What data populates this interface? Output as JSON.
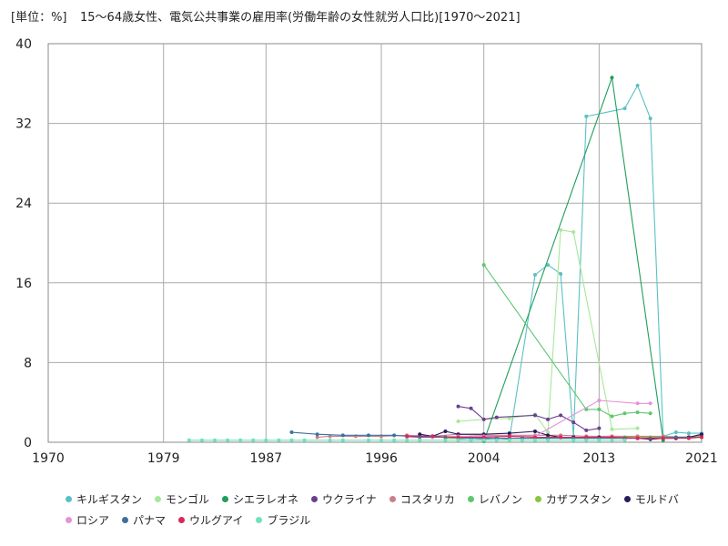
{
  "unit_label": "[単位：%]",
  "chart_data": {
    "type": "line",
    "title": "15〜64歳女性、電気公共事業の雇用率(労働年齢の女性就労人口比)[1970〜2021]",
    "xlim": [
      1970,
      2021
    ],
    "ylim": [
      0,
      40
    ],
    "x_ticks": [
      "1970",
      "1979",
      "1987",
      "1996",
      "2004",
      "2013",
      "2021"
    ],
    "y_ticks": [
      "0",
      "8",
      "16",
      "24",
      "32",
      "40"
    ],
    "grid": true,
    "legend_position": "bottom",
    "series": [
      {
        "name": "キルギスタン",
        "color": "#5bc0c4",
        "points": [
          [
            2002,
            0.3
          ],
          [
            2003,
            0.2
          ],
          [
            2004,
            0.3
          ],
          [
            2005,
            0.4
          ],
          [
            2006,
            0.3
          ],
          [
            2008,
            16.8
          ],
          [
            2009,
            17.8
          ],
          [
            2010,
            16.9
          ],
          [
            2011,
            0.6
          ],
          [
            2012,
            32.7
          ],
          [
            2015,
            33.5
          ],
          [
            2016,
            35.8
          ],
          [
            2017,
            32.5
          ],
          [
            2018,
            0.6
          ],
          [
            2019,
            1.0
          ],
          [
            2020,
            0.9
          ],
          [
            2021,
            0.9
          ]
        ]
      },
      {
        "name": "モンゴル",
        "color": "#a7e89a",
        "points": [
          [
            2002,
            2.1
          ],
          [
            2004,
            2.3
          ],
          [
            2006,
            2.4
          ],
          [
            2008,
            2.8
          ],
          [
            2009,
            1.0
          ],
          [
            2010,
            21.3
          ],
          [
            2011,
            21.1
          ],
          [
            2014,
            1.3
          ],
          [
            2016,
            1.4
          ]
        ]
      },
      {
        "name": "シエラレオネ",
        "color": "#1f9e5b",
        "points": [
          [
            2004,
            0.1
          ],
          [
            2014,
            36.6
          ],
          [
            2018,
            0.2
          ]
        ]
      },
      {
        "name": "ウクライナ",
        "color": "#6b3f8f",
        "points": [
          [
            2002,
            3.6
          ],
          [
            2003,
            3.4
          ],
          [
            2004,
            2.3
          ],
          [
            2005,
            2.5
          ],
          [
            2008,
            2.7
          ],
          [
            2009,
            2.3
          ],
          [
            2010,
            2.7
          ],
          [
            2011,
            2.0
          ],
          [
            2012,
            1.2
          ],
          [
            2013,
            1.4
          ]
        ]
      },
      {
        "name": "コスタリカ",
        "color": "#c97f8a",
        "points": [
          [
            1991,
            0.5
          ],
          [
            1992,
            0.6
          ],
          [
            1994,
            0.6
          ],
          [
            1996,
            0.6
          ],
          [
            1998,
            0.7
          ],
          [
            2000,
            0.6
          ],
          [
            2002,
            0.8
          ],
          [
            2004,
            0.7
          ],
          [
            2006,
            0.7
          ],
          [
            2008,
            0.7
          ],
          [
            2010,
            0.7
          ],
          [
            2012,
            0.6
          ],
          [
            2014,
            0.6
          ],
          [
            2016,
            0.6
          ],
          [
            2018,
            0.6
          ],
          [
            2020,
            0.5
          ],
          [
            2021,
            0.7
          ]
        ]
      },
      {
        "name": "レバノン",
        "color": "#5ec76e",
        "points": [
          [
            2004,
            17.8
          ],
          [
            2012,
            3.3
          ],
          [
            2013,
            3.3
          ],
          [
            2014,
            2.6
          ],
          [
            2015,
            2.9
          ],
          [
            2016,
            3.0
          ],
          [
            2017,
            2.9
          ]
        ]
      },
      {
        "name": "カザフスタン",
        "color": "#88c43f",
        "points": [
          [
            2001,
            0.4
          ],
          [
            2003,
            0.4
          ],
          [
            2005,
            0.4
          ],
          [
            2007,
            0.4
          ],
          [
            2009,
            0.4
          ],
          [
            2011,
            0.5
          ],
          [
            2013,
            0.5
          ],
          [
            2015,
            0.5
          ],
          [
            2017,
            0.5
          ],
          [
            2019,
            0.5
          ],
          [
            2021,
            0.6
          ]
        ]
      },
      {
        "name": "モルドバ",
        "color": "#2a1a5e",
        "points": [
          [
            1999,
            0.8
          ],
          [
            2000,
            0.6
          ],
          [
            2001,
            1.1
          ],
          [
            2002,
            0.8
          ],
          [
            2004,
            0.8
          ],
          [
            2006,
            0.9
          ],
          [
            2008,
            1.1
          ],
          [
            2009,
            0.7
          ],
          [
            2010,
            0.5
          ],
          [
            2011,
            0.5
          ],
          [
            2012,
            0.4
          ],
          [
            2013,
            0.5
          ],
          [
            2015,
            0.4
          ],
          [
            2016,
            0.4
          ],
          [
            2017,
            0.3
          ],
          [
            2018,
            0.4
          ],
          [
            2019,
            0.4
          ],
          [
            2020,
            0.5
          ],
          [
            2021,
            0.8
          ]
        ]
      },
      {
        "name": "ロシア",
        "color": "#e493d8",
        "points": [
          [
            1998,
            0.5
          ],
          [
            2000,
            0.5
          ],
          [
            2002,
            0.6
          ],
          [
            2004,
            0.6
          ],
          [
            2006,
            0.6
          ],
          [
            2008,
            0.6
          ],
          [
            2013,
            4.2
          ],
          [
            2016,
            3.9
          ],
          [
            2017,
            3.9
          ]
        ]
      },
      {
        "name": "パナマ",
        "color": "#3f6f9f",
        "points": [
          [
            1989,
            1.0
          ],
          [
            1991,
            0.8
          ],
          [
            1993,
            0.7
          ],
          [
            1995,
            0.7
          ],
          [
            1997,
            0.7
          ],
          [
            1999,
            0.5
          ],
          [
            2001,
            0.5
          ],
          [
            2003,
            0.4
          ],
          [
            2005,
            0.4
          ],
          [
            2007,
            0.4
          ],
          [
            2009,
            0.4
          ],
          [
            2011,
            0.4
          ],
          [
            2013,
            0.4
          ],
          [
            2015,
            0.4
          ],
          [
            2017,
            0.4
          ],
          [
            2019,
            0.5
          ],
          [
            2021,
            0.5
          ]
        ]
      },
      {
        "name": "ウルグアイ",
        "color": "#d9285a",
        "points": [
          [
            1998,
            0.6
          ],
          [
            2000,
            0.6
          ],
          [
            2002,
            0.5
          ],
          [
            2004,
            0.5
          ],
          [
            2006,
            0.6
          ],
          [
            2008,
            0.5
          ],
          [
            2010,
            0.5
          ],
          [
            2012,
            0.5
          ],
          [
            2014,
            0.5
          ],
          [
            2016,
            0.4
          ],
          [
            2018,
            0.4
          ],
          [
            2020,
            0.4
          ],
          [
            2021,
            0.5
          ]
        ]
      },
      {
        "name": "ブラジル",
        "color": "#6fe3b8",
        "points": [
          [
            1981,
            0.2
          ],
          [
            1982,
            0.2
          ],
          [
            1983,
            0.2
          ],
          [
            1984,
            0.2
          ],
          [
            1985,
            0.2
          ],
          [
            1986,
            0.2
          ],
          [
            1987,
            0.2
          ],
          [
            1988,
            0.2
          ],
          [
            1989,
            0.2
          ],
          [
            1990,
            0.2
          ],
          [
            1992,
            0.2
          ],
          [
            1993,
            0.2
          ],
          [
            1995,
            0.2
          ],
          [
            1996,
            0.2
          ],
          [
            1997,
            0.2
          ],
          [
            1998,
            0.2
          ],
          [
            1999,
            0.2
          ],
          [
            2001,
            0.2
          ],
          [
            2002,
            0.2
          ],
          [
            2003,
            0.2
          ],
          [
            2004,
            0.2
          ],
          [
            2005,
            0.2
          ],
          [
            2006,
            0.2
          ],
          [
            2007,
            0.2
          ],
          [
            2008,
            0.2
          ],
          [
            2009,
            0.2
          ],
          [
            2011,
            0.2
          ],
          [
            2012,
            0.2
          ],
          [
            2013,
            0.2
          ],
          [
            2014,
            0.2
          ],
          [
            2015,
            0.2
          ]
        ]
      }
    ]
  }
}
